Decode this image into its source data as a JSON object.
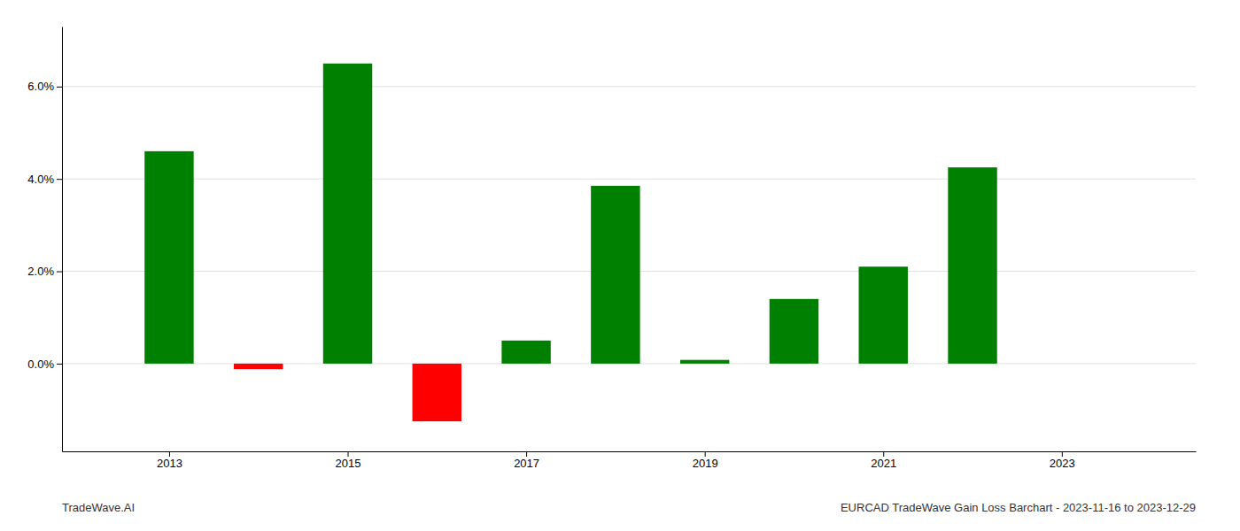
{
  "chart_data": {
    "type": "bar",
    "x": [
      2013,
      2014,
      2015,
      2016,
      2017,
      2018,
      2019,
      2020,
      2021,
      2022,
      2023
    ],
    "values": [
      4.6,
      -0.12,
      6.5,
      -1.25,
      0.5,
      3.85,
      0.08,
      1.4,
      2.1,
      4.25,
      0.0
    ],
    "colors": [
      "#008000",
      "#ff0000",
      "#008000",
      "#ff0000",
      "#008000",
      "#008000",
      "#008000",
      "#008000",
      "#008000",
      "#008000",
      "#008000"
    ],
    "xlim": [
      2011.8,
      2024.5
    ],
    "xticks": [
      2013,
      2015,
      2017,
      2019,
      2021,
      2023
    ],
    "ylim": [
      -1.9,
      7.3
    ],
    "yticks": [
      {
        "value": 0.0,
        "label": "0.0%"
      },
      {
        "value": 2.0,
        "label": "2.0%"
      },
      {
        "value": 4.0,
        "label": "4.0%"
      },
      {
        "value": 6.0,
        "label": "6.0%"
      }
    ],
    "grid": true,
    "annotations": [
      "TradeWave.AI",
      "EURCAD TradeWave Gain Loss Barchart - 2023-11-16 to 2023-12-29"
    ]
  }
}
